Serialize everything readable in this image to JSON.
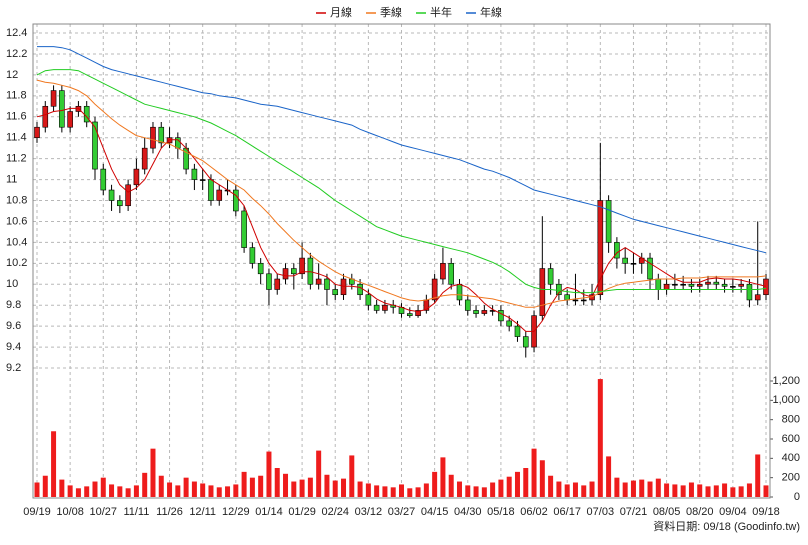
{
  "chart_data": [
    {
      "type": "candlestick",
      "categories": [
        "09/19",
        null,
        null,
        null,
        "10/08",
        null,
        null,
        null,
        "10/27",
        null,
        null,
        null,
        "11/11",
        null,
        null,
        null,
        "11/26",
        null,
        null,
        null,
        "12/11",
        null,
        null,
        null,
        "12/29",
        null,
        null,
        null,
        "01/14",
        null,
        null,
        null,
        "01/29",
        null,
        null,
        null,
        "02/24",
        null,
        null,
        null,
        "03/12",
        null,
        null,
        null,
        "03/27",
        null,
        null,
        null,
        "04/15",
        null,
        null,
        null,
        "04/30",
        null,
        null,
        null,
        "05/18",
        null,
        null,
        null,
        "06/02",
        null,
        null,
        null,
        "06/17",
        null,
        null,
        null,
        "07/03",
        null,
        null,
        null,
        "07/21",
        null,
        null,
        null,
        "08/05",
        null,
        null,
        null,
        "08/20",
        null,
        null,
        null,
        "09/04",
        null,
        null,
        null,
        "09/18"
      ],
      "open": [
        11.4,
        11.5,
        11.7,
        11.85,
        11.5,
        11.65,
        11.7,
        11.55,
        11.1,
        10.9,
        10.8,
        10.75,
        10.95,
        11.1,
        11.3,
        11.5,
        11.35,
        11.4,
        11.3,
        11.1,
        11,
        11,
        10.8,
        10.9,
        10.9,
        10.7,
        10.35,
        10.2,
        10.1,
        9.95,
        10.05,
        10.15,
        10.1,
        10.25,
        10,
        10.05,
        9.95,
        9.9,
        10.05,
        10,
        9.9,
        9.8,
        9.75,
        9.8,
        9.78,
        9.72,
        9.7,
        9.75,
        9.85,
        10.05,
        10.2,
        10,
        9.85,
        9.75,
        9.72,
        9.75,
        9.75,
        9.65,
        9.6,
        9.5,
        9.4,
        9.7,
        10.15,
        10,
        9.9,
        9.85,
        9.85,
        9.85,
        9.9,
        10.8,
        10.4,
        10.25,
        10.2,
        10.2,
        10.25,
        10.05,
        9.95,
        10,
        10,
        10,
        9.98,
        10,
        10.02,
        10,
        9.98,
        9.98,
        10,
        9.85,
        9.9
      ],
      "high": [
        11.55,
        11.75,
        11.9,
        11.9,
        11.7,
        11.75,
        11.75,
        11.6,
        11.15,
        10.95,
        10.85,
        11,
        11.2,
        11.4,
        11.55,
        11.55,
        11.5,
        11.45,
        11.35,
        11.15,
        11.1,
        11.05,
        10.95,
        11,
        10.95,
        10.75,
        10.4,
        10.25,
        10.15,
        10.1,
        10.2,
        10.2,
        10.4,
        10.3,
        10.2,
        10.1,
        10,
        10.1,
        10.1,
        10.05,
        9.95,
        9.85,
        9.85,
        9.85,
        9.82,
        9.78,
        9.8,
        9.9,
        10.1,
        10.35,
        10.25,
        10.05,
        9.9,
        9.8,
        9.8,
        9.8,
        9.8,
        9.7,
        9.65,
        9.55,
        9.75,
        10.65,
        10.2,
        10.05,
        9.95,
        10.1,
        9.95,
        10,
        11.35,
        10.85,
        10.45,
        10.35,
        10.3,
        10.3,
        10.3,
        10.1,
        10.05,
        10.1,
        10.08,
        10.05,
        10.05,
        10.08,
        10.08,
        10.05,
        10.05,
        10.05,
        10.05,
        10.6,
        10.1
      ],
      "low": [
        11.35,
        11.45,
        11.65,
        11.45,
        11.45,
        11.6,
        11.5,
        11,
        10.85,
        10.7,
        10.68,
        10.7,
        10.9,
        11.05,
        11.25,
        11.3,
        11.3,
        11.2,
        11.05,
        10.9,
        10.9,
        10.75,
        10.75,
        10.85,
        10.65,
        10.3,
        10.15,
        10,
        9.8,
        9.9,
        10,
        9.95,
        10.05,
        9.95,
        9.95,
        9.8,
        9.85,
        9.85,
        9.95,
        9.85,
        9.75,
        9.72,
        9.72,
        9.72,
        9.68,
        9.68,
        9.68,
        9.72,
        9.82,
        10,
        9.95,
        9.8,
        9.7,
        9.68,
        9.7,
        9.7,
        9.6,
        9.55,
        9.45,
        9.3,
        9.35,
        9.65,
        9.9,
        9.85,
        9.8,
        9.8,
        9.8,
        9.8,
        9.85,
        10.3,
        10.15,
        10.1,
        10.1,
        10.1,
        9.95,
        9.85,
        9.9,
        9.95,
        9.95,
        9.92,
        9.92,
        9.95,
        9.95,
        9.92,
        9.92,
        9.92,
        9.78,
        9.8,
        9.85
      ],
      "close": [
        11.5,
        11.7,
        11.85,
        11.5,
        11.65,
        11.7,
        11.55,
        11.1,
        10.9,
        10.8,
        10.75,
        10.95,
        11.1,
        11.3,
        11.5,
        11.35,
        11.4,
        11.3,
        11.1,
        11,
        11,
        10.8,
        10.9,
        10.9,
        10.7,
        10.35,
        10.2,
        10.1,
        9.95,
        10.05,
        10.15,
        10.1,
        10.25,
        10,
        10.05,
        9.95,
        9.9,
        10.05,
        10,
        9.9,
        9.8,
        9.75,
        9.8,
        9.78,
        9.72,
        9.7,
        9.75,
        9.85,
        10.05,
        10.2,
        10,
        9.85,
        9.75,
        9.72,
        9.75,
        9.75,
        9.65,
        9.6,
        9.5,
        9.4,
        9.7,
        10.15,
        10,
        9.9,
        9.85,
        9.85,
        9.85,
        9.9,
        10.8,
        10.4,
        10.25,
        10.2,
        10.2,
        10.25,
        10.05,
        9.95,
        10,
        10,
        10,
        9.98,
        10,
        10.02,
        10,
        9.98,
        9.98,
        10,
        9.85,
        9.9,
        10.05
      ],
      "up_color": "#d81818",
      "down_color": "#33cc33",
      "flat_color": "#000000",
      "series": [
        {
          "name": "月線",
          "color": "#d00000",
          "values": [
            11.6,
            11.62,
            11.65,
            11.66,
            11.68,
            11.68,
            11.6,
            11.5,
            11.3,
            11.1,
            10.95,
            10.88,
            10.92,
            11,
            11.15,
            11.3,
            11.38,
            11.38,
            11.3,
            11.2,
            11.1,
            11,
            10.95,
            10.9,
            10.85,
            10.75,
            10.55,
            10.35,
            10.2,
            10.1,
            10.08,
            10.08,
            10.12,
            10.12,
            10.1,
            10.07,
            10,
            9.98,
            9.98,
            9.97,
            9.92,
            9.86,
            9.82,
            9.8,
            9.78,
            9.75,
            9.74,
            9.76,
            9.82,
            9.92,
            9.98,
            10,
            9.97,
            9.9,
            9.82,
            9.76,
            9.72,
            9.68,
            9.62,
            9.55,
            9.55,
            9.65,
            9.8,
            9.92,
            9.97,
            9.95,
            9.9,
            9.88,
            10.05,
            10.2,
            10.3,
            10.35,
            10.3,
            10.25,
            10.2,
            10.15,
            10.1,
            10.05,
            10.02,
            10.02,
            10.02,
            10.05,
            10.06,
            10.05,
            10.05,
            10.04,
            10.02,
            10,
            9.98
          ]
        },
        {
          "name": "季線",
          "color": "#f07820",
          "values": [
            11.95,
            11.93,
            11.92,
            11.9,
            11.88,
            11.85,
            11.8,
            11.72,
            11.65,
            11.58,
            11.52,
            11.47,
            11.42,
            11.4,
            11.38,
            11.36,
            11.34,
            11.3,
            11.26,
            11.22,
            11.18,
            11.12,
            11.06,
            11,
            10.95,
            10.9,
            10.82,
            10.75,
            10.67,
            10.58,
            10.5,
            10.42,
            10.35,
            10.28,
            10.22,
            10.17,
            10.12,
            10.08,
            10.05,
            10.02,
            9.99,
            9.96,
            9.93,
            9.9,
            9.87,
            9.85,
            9.84,
            9.85,
            9.87,
            9.89,
            9.9,
            9.9,
            9.89,
            9.88,
            9.87,
            9.86,
            9.84,
            9.82,
            9.8,
            9.78,
            9.78,
            9.8,
            9.82,
            9.84,
            9.85,
            9.86,
            9.87,
            9.88,
            9.92,
            9.96,
            9.99,
            10.01,
            10.02,
            10.03,
            10.04,
            10.05,
            10.05,
            10.05,
            10.06,
            10.06,
            10.06,
            10.07,
            10.07,
            10.07,
            10.07,
            10.07,
            10.07,
            10.07,
            10.08
          ]
        },
        {
          "name": "半年",
          "color": "#22cc22",
          "values": [
            12,
            12.04,
            12.05,
            12.05,
            12.05,
            12.04,
            12,
            11.96,
            11.92,
            11.88,
            11.84,
            11.8,
            11.76,
            11.72,
            11.7,
            11.68,
            11.66,
            11.64,
            11.62,
            11.6,
            11.57,
            11.54,
            11.5,
            11.46,
            11.42,
            11.37,
            11.32,
            11.27,
            11.22,
            11.17,
            11.12,
            11.07,
            11.02,
            10.97,
            10.92,
            10.86,
            10.8,
            10.75,
            10.7,
            10.65,
            10.6,
            10.55,
            10.52,
            10.49,
            10.46,
            10.44,
            10.42,
            10.4,
            10.38,
            10.36,
            10.34,
            10.32,
            10.3,
            10.27,
            10.24,
            10.21,
            10.17,
            10.12,
            10.06,
            10,
            9.97,
            9.95,
            9.95,
            9.94,
            9.93,
            9.92,
            9.92,
            9.92,
            9.93,
            9.94,
            9.95,
            9.95,
            9.95,
            9.95,
            9.95,
            9.95,
            9.95,
            9.95,
            9.95,
            9.95,
            9.95,
            9.95,
            9.95,
            9.95,
            9.95,
            9.95,
            9.95,
            9.95,
            9.96
          ]
        },
        {
          "name": "年線",
          "color": "#1a64c8",
          "values": [
            12.27,
            12.27,
            12.27,
            12.26,
            12.24,
            12.2,
            12.16,
            12.12,
            12.08,
            12.05,
            12.03,
            12.01,
            11.99,
            11.97,
            11.95,
            11.93,
            11.91,
            11.89,
            11.87,
            11.85,
            11.83,
            11.82,
            11.8,
            11.79,
            11.78,
            11.76,
            11.74,
            11.72,
            11.71,
            11.7,
            11.68,
            11.66,
            11.64,
            11.62,
            11.6,
            11.58,
            11.56,
            11.54,
            11.52,
            11.48,
            11.45,
            11.42,
            11.39,
            11.36,
            11.33,
            11.31,
            11.29,
            11.27,
            11.25,
            11.23,
            11.21,
            11.19,
            11.16,
            11.13,
            11.1,
            11.08,
            11.05,
            11.02,
            10.98,
            10.94,
            10.9,
            10.88,
            10.86,
            10.84,
            10.82,
            10.8,
            10.78,
            10.76,
            10.74,
            10.71,
            10.68,
            10.65,
            10.62,
            10.6,
            10.58,
            10.56,
            10.54,
            10.52,
            10.5,
            10.48,
            10.46,
            10.44,
            10.42,
            10.4,
            10.38,
            10.36,
            10.34,
            10.32,
            10.3
          ]
        }
      ],
      "ylim": [
        9.2,
        12.4
      ],
      "yticks": [
        9.2,
        9.4,
        9.6,
        9.8,
        10,
        10.2,
        10.4,
        10.6,
        10.8,
        11,
        11.2,
        11.4,
        11.6,
        11.8,
        12,
        12.2,
        12.4
      ],
      "grid": true
    },
    {
      "type": "bar",
      "values": [
        150,
        220,
        680,
        180,
        120,
        90,
        110,
        160,
        200,
        130,
        110,
        90,
        120,
        250,
        500,
        220,
        150,
        120,
        200,
        160,
        140,
        120,
        100,
        110,
        130,
        260,
        200,
        220,
        470,
        300,
        240,
        160,
        180,
        200,
        480,
        230,
        170,
        190,
        430,
        160,
        140,
        120,
        110,
        100,
        130,
        90,
        100,
        140,
        260,
        410,
        230,
        160,
        120,
        110,
        100,
        150,
        180,
        210,
        260,
        300,
        500,
        380,
        220,
        160,
        130,
        150,
        120,
        160,
        1220,
        420,
        200,
        150,
        170,
        180,
        160,
        190,
        140,
        130,
        120,
        150,
        130,
        110,
        120,
        140,
        100,
        110,
        140,
        440,
        120
      ],
      "color": "#ee1c1c",
      "ylim": [
        0,
        1200
      ],
      "yticks": [
        0,
        200,
        400,
        600,
        800,
        {
          "value": 1000,
          "label": "1,000"
        },
        {
          "value": 1200,
          "label": "1,200"
        }
      ],
      "grid": true
    }
  ],
  "footer": "資料日期: 09/18 (Goodinfo.tw)"
}
